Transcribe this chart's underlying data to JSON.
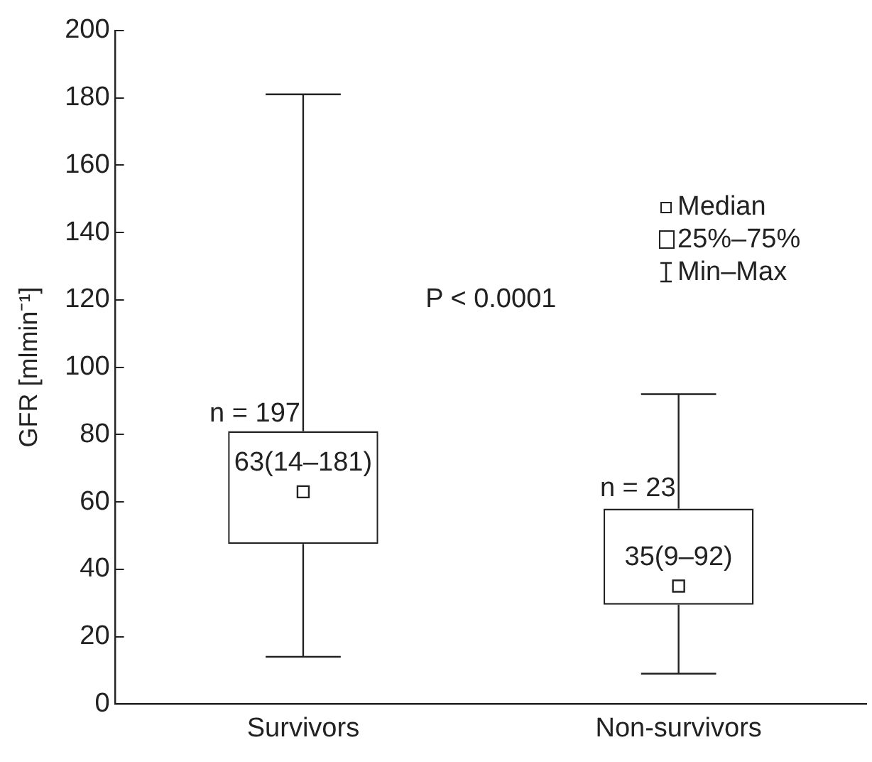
{
  "chart_data": {
    "type": "box",
    "ylabel": "GFR [mlmin⁻¹]",
    "categories": [
      "Survivors",
      "Non-survivors"
    ],
    "boxes": [
      {
        "low": 14,
        "q1": 47.5,
        "median": 63,
        "q3": 81,
        "high": 181
      },
      {
        "low": 9,
        "q1": 29.5,
        "median": 35,
        "q3": 58,
        "high": 92
      }
    ],
    "ylim": [
      0,
      200
    ],
    "yticks": [
      0,
      20,
      40,
      60,
      80,
      100,
      120,
      140,
      160,
      180,
      200
    ],
    "grid": false,
    "annotations": [
      {
        "text": "n = 197",
        "x": "Survivors",
        "y": 86
      },
      {
        "text": "n = 23",
        "x": "Non-survivors",
        "y": 64
      },
      "63(14–181)",
      "35(9–92)",
      "P < 0.0001",
      "Median",
      "25%–75%",
      "Min–Max"
    ]
  }
}
